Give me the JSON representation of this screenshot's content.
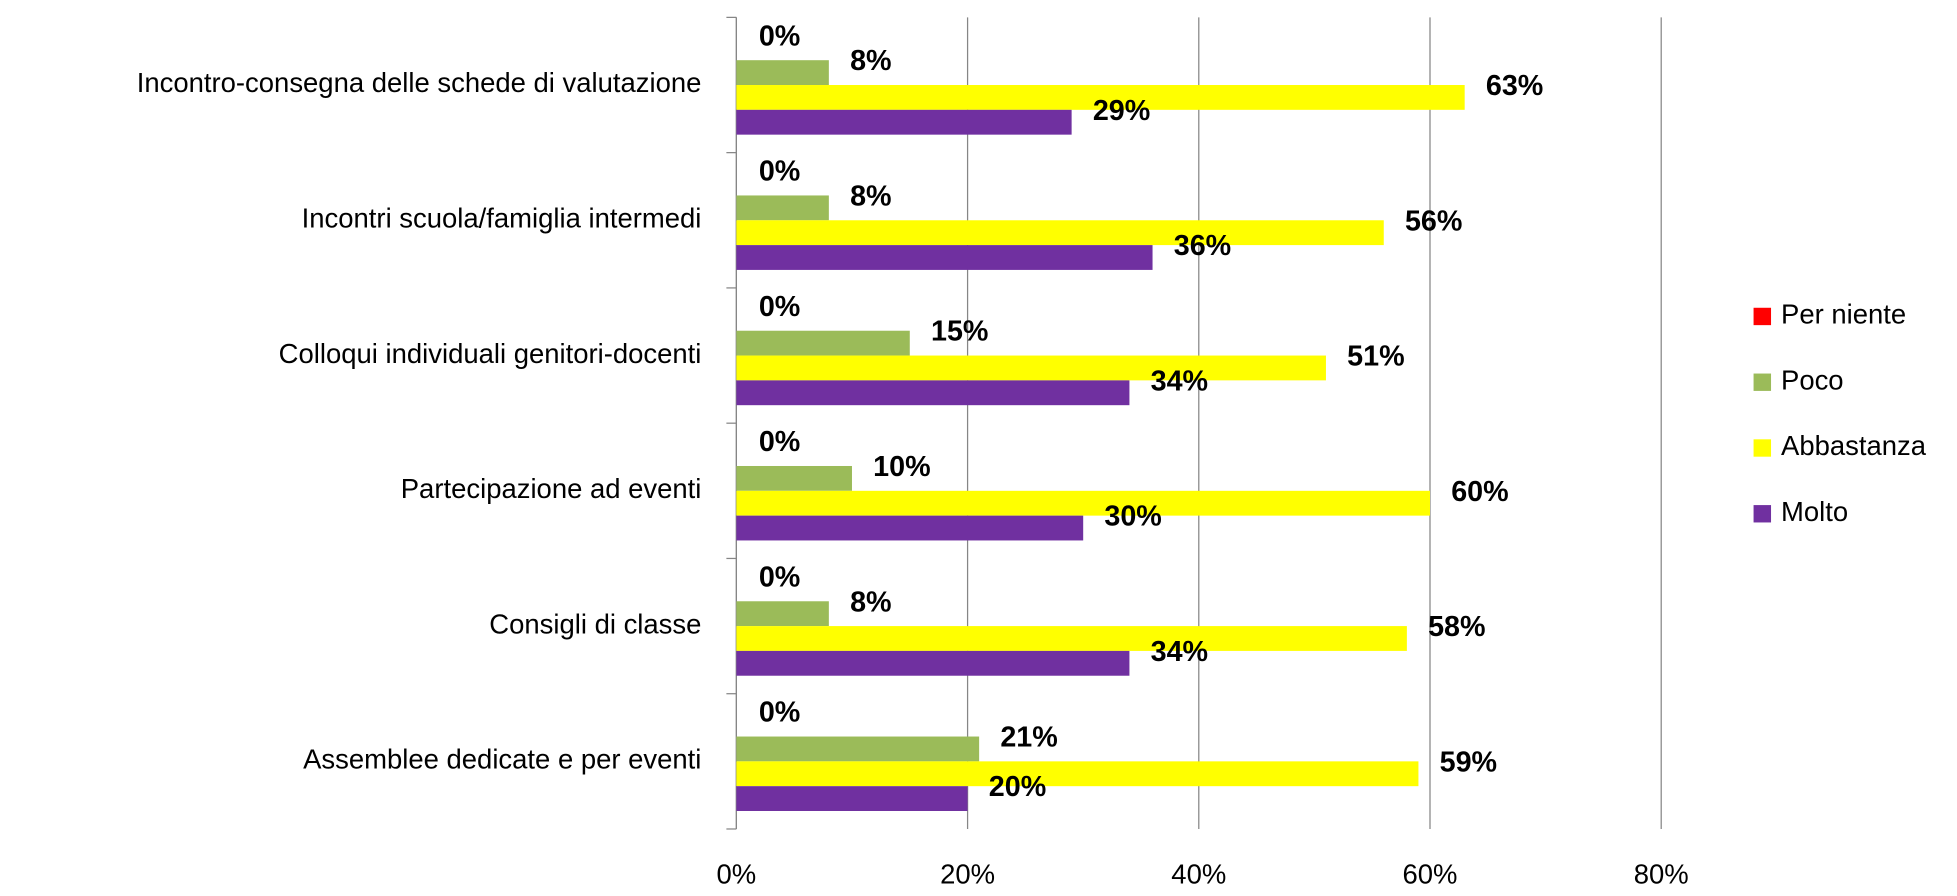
{
  "chart_data": {
    "type": "hbar",
    "categories": [
      "Incontro-consegna delle schede di valutazione",
      "Incontri scuola/famiglia intermedi",
      "Colloqui individuali genitori-docenti",
      "Partecipazione  ad eventi",
      "Consigli di classe",
      "Assemblee dedicate e per eventi"
    ],
    "series": [
      {
        "name": "Per niente",
        "color": "#ff0000",
        "values": [
          0,
          0,
          0,
          0,
          0,
          0
        ],
        "value_labels": [
          "0%",
          "0%",
          "0%",
          "0%",
          "0%",
          "0%"
        ]
      },
      {
        "name": "Poco",
        "color": "#9bbb59",
        "values": [
          8,
          8,
          15,
          10,
          8,
          21
        ],
        "value_labels": [
          "8%",
          "8%",
          "15%",
          "10%",
          "8%",
          "21%"
        ]
      },
      {
        "name": "Abbastanza",
        "color": "#ffff00",
        "values": [
          63,
          56,
          51,
          60,
          58,
          59
        ],
        "value_labels": [
          "63%",
          "56%",
          "51%",
          "60%",
          "58%",
          "59%"
        ]
      },
      {
        "name": "Molto",
        "color": "#7030a0",
        "values": [
          29,
          36,
          34,
          30,
          34,
          20
        ],
        "value_labels": [
          "29%",
          "36%",
          "34%",
          "30%",
          "34%",
          "20%"
        ]
      }
    ],
    "xlim": [
      0,
      80
    ],
    "xticks": [
      {
        "value": 0,
        "label": "0%"
      },
      {
        "value": 20,
        "label": "20%"
      },
      {
        "value": 40,
        "label": "40%"
      },
      {
        "value": 60,
        "label": "60%"
      },
      {
        "value": 80,
        "label": "80%"
      }
    ],
    "grid": true,
    "legend": "right"
  }
}
